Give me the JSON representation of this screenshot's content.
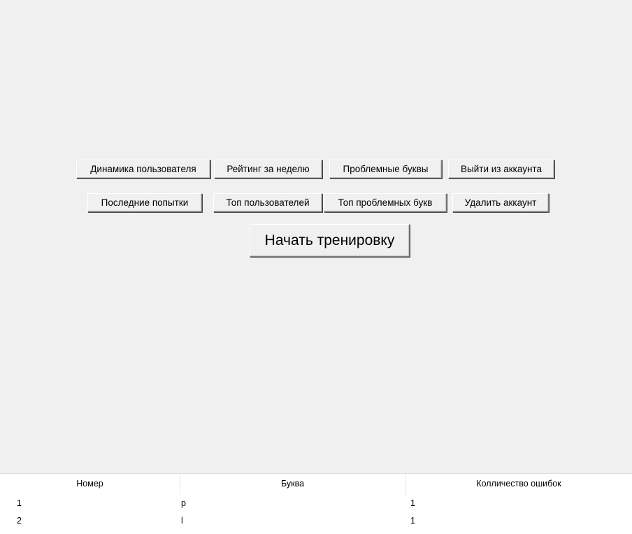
{
  "buttons": {
    "user_dynamics": "Динамика пользователя",
    "weekly_rating": "Рейтинг за неделю",
    "problem_letters": "Проблемные буквы",
    "logout": "Выйти из аккаунта",
    "recent_attempts": "Последние попытки",
    "top_users": "Топ пользователей",
    "top_problem_letters": "Топ проблемных букв",
    "delete_account": "Удалить аккаунт",
    "start_training": "Начать тренировку"
  },
  "table": {
    "columns": [
      "Номер",
      "Буква",
      "Колличество ошибок"
    ],
    "rows": [
      [
        "1",
        "p",
        "1"
      ],
      [
        "2",
        "l",
        "1"
      ]
    ]
  }
}
